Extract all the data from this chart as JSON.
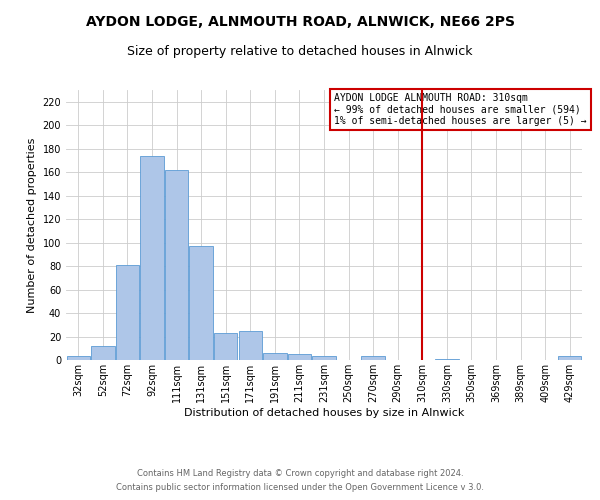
{
  "title": "AYDON LODGE, ALNMOUTH ROAD, ALNWICK, NE66 2PS",
  "subtitle": "Size of property relative to detached houses in Alnwick",
  "xlabel": "Distribution of detached houses by size in Alnwick",
  "ylabel": "Number of detached properties",
  "bar_labels": [
    "32sqm",
    "52sqm",
    "72sqm",
    "92sqm",
    "111sqm",
    "131sqm",
    "151sqm",
    "171sqm",
    "191sqm",
    "211sqm",
    "231sqm",
    "250sqm",
    "270sqm",
    "290sqm",
    "310sqm",
    "330sqm",
    "350sqm",
    "369sqm",
    "389sqm",
    "409sqm",
    "429sqm"
  ],
  "bar_values": [
    3,
    12,
    81,
    174,
    162,
    97,
    23,
    25,
    6,
    5,
    3,
    0,
    3,
    0,
    0,
    1,
    0,
    0,
    0,
    0,
    3
  ],
  "bar_color": "#aec6e8",
  "bar_edge_color": "#5b9bd5",
  "highlight_x_label": "310sqm",
  "highlight_line_color": "#cc0000",
  "ylim": [
    0,
    230
  ],
  "yticks": [
    0,
    20,
    40,
    60,
    80,
    100,
    120,
    140,
    160,
    180,
    200,
    220
  ],
  "annotation_title": "AYDON LODGE ALNMOUTH ROAD: 310sqm",
  "annotation_line1": "← 99% of detached houses are smaller (594)",
  "annotation_line2": "1% of semi-detached houses are larger (5) →",
  "annotation_box_color": "#ffffff",
  "annotation_box_edge": "#cc0000",
  "footer_line1": "Contains HM Land Registry data © Crown copyright and database right 2024.",
  "footer_line2": "Contains public sector information licensed under the Open Government Licence v 3.0.",
  "background_color": "#ffffff",
  "grid_color": "#cccccc",
  "title_fontsize": 10,
  "subtitle_fontsize": 9,
  "axis_label_fontsize": 8,
  "tick_fontsize": 7,
  "annotation_fontsize": 7,
  "footer_fontsize": 6
}
